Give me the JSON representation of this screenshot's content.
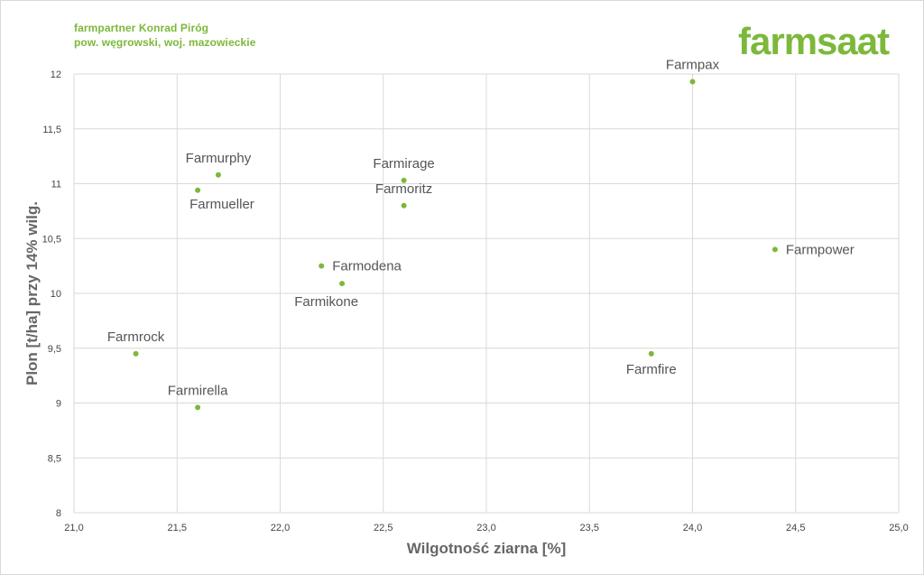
{
  "header": {
    "line1": "farmpartner Konrad Piróg",
    "line2": "pow. węgrowski, woj. mazowieckie",
    "logo": "farmsaat",
    "accent_color": "#7cb83a"
  },
  "chart_data": {
    "type": "scatter",
    "title": "",
    "xlabel": "Wilgotność ziarna [%]",
    "ylabel": "Plon [t/ha] przy 14% wilg.",
    "xlim": [
      21.0,
      25.0
    ],
    "ylim": [
      8,
      12
    ],
    "x_ticks": [
      "21,0",
      "21,5",
      "22,0",
      "22,5",
      "23,0",
      "23,5",
      "24,0",
      "24,5",
      "25,0"
    ],
    "y_ticks": [
      "8",
      "8,5",
      "9",
      "9,5",
      "10",
      "10,5",
      "11",
      "11,5",
      "12"
    ],
    "grid": true,
    "point_color": "#7cb83a",
    "points": [
      {
        "label": "Farmpax",
        "x": 24.0,
        "y": 11.93,
        "pos": "above"
      },
      {
        "label": "Farmurphy",
        "x": 21.7,
        "y": 11.08,
        "pos": "above"
      },
      {
        "label": "Farmueller",
        "x": 21.6,
        "y": 10.94,
        "pos": "below-right"
      },
      {
        "label": "Farmirage",
        "x": 22.6,
        "y": 11.03,
        "pos": "above"
      },
      {
        "label": "Farmoritz",
        "x": 22.6,
        "y": 10.8,
        "pos": "above"
      },
      {
        "label": "Farmpower",
        "x": 24.4,
        "y": 10.4,
        "pos": "right"
      },
      {
        "label": "Farmodena",
        "x": 22.2,
        "y": 10.25,
        "pos": "right"
      },
      {
        "label": "Farmikone",
        "x": 22.3,
        "y": 10.09,
        "pos": "below-left"
      },
      {
        "label": "Farmrock",
        "x": 21.3,
        "y": 9.45,
        "pos": "above"
      },
      {
        "label": "Farmfire",
        "x": 23.8,
        "y": 9.45,
        "pos": "below"
      },
      {
        "label": "Farmirella",
        "x": 21.6,
        "y": 8.96,
        "pos": "above"
      }
    ]
  }
}
